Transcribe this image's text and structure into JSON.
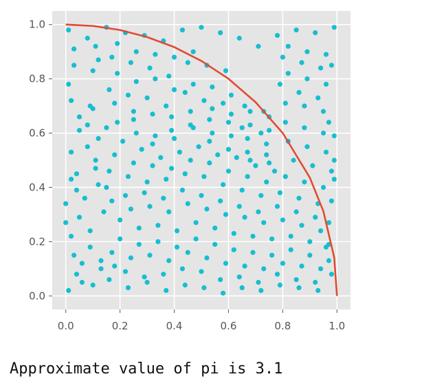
{
  "chart_data": {
    "type": "scatter",
    "title": "",
    "xlabel": "",
    "ylabel": "",
    "xlim": [
      -0.05,
      1.05
    ],
    "ylim": [
      -0.05,
      1.05
    ],
    "xticks": [
      0.0,
      0.2,
      0.4,
      0.6,
      0.8,
      1.0
    ],
    "yticks": [
      0.0,
      0.2,
      0.4,
      0.6,
      0.8,
      1.0
    ],
    "x_tick_labels": [
      "0.0",
      "0.2",
      "0.4",
      "0.6",
      "0.8",
      "1.0"
    ],
    "y_tick_labels": [
      "0.0",
      "0.2",
      "0.4",
      "0.6",
      "0.8",
      "1.0"
    ],
    "grid": true,
    "style": "ggplot",
    "background_color": "#e5e5e5",
    "grid_color": "#ffffff",
    "point_color": "#17becf",
    "curve_color": "#e24a33",
    "series": [
      {
        "kind": "curve",
        "description": "quarter circle y = sqrt(1 - x^2)",
        "x": [
          0.0,
          0.1,
          0.2,
          0.3,
          0.4,
          0.5,
          0.6,
          0.7,
          0.8,
          0.9,
          0.95,
          0.99,
          1.0
        ],
        "y": [
          1.0,
          0.995,
          0.98,
          0.954,
          0.917,
          0.866,
          0.8,
          0.714,
          0.6,
          0.436,
          0.312,
          0.141,
          0.0
        ]
      },
      {
        "kind": "points",
        "x": [
          0.01,
          0.03,
          0.02,
          0.05,
          0.04,
          0.0,
          0.02,
          0.06,
          0.01,
          0.03,
          0.05,
          0.02,
          0.04,
          0.0,
          0.03,
          0.06,
          0.01,
          0.02,
          0.05,
          0.04,
          0.08,
          0.1,
          0.09,
          0.12,
          0.11,
          0.07,
          0.09,
          0.13,
          0.1,
          0.12,
          0.08,
          0.11,
          0.14,
          0.09,
          0.12,
          0.1,
          0.08,
          0.13,
          0.11,
          0.15,
          0.17,
          0.16,
          0.19,
          0.18,
          0.15,
          0.2,
          0.17,
          0.16,
          0.19,
          0.18,
          0.21,
          0.17,
          0.2,
          0.16,
          0.19,
          0.15,
          0.18,
          0.22,
          0.24,
          0.23,
          0.26,
          0.25,
          0.22,
          0.27,
          0.24,
          0.23,
          0.26,
          0.25,
          0.28,
          0.24,
          0.27,
          0.23,
          0.26,
          0.25,
          0.22,
          0.29,
          0.31,
          0.3,
          0.33,
          0.32,
          0.29,
          0.34,
          0.31,
          0.3,
          0.33,
          0.32,
          0.35,
          0.31,
          0.34,
          0.3,
          0.33,
          0.32,
          0.29,
          0.36,
          0.38,
          0.37,
          0.4,
          0.39,
          0.36,
          0.41,
          0.38,
          0.37,
          0.4,
          0.39,
          0.42,
          0.38,
          0.41,
          0.37,
          0.4,
          0.39,
          0.36,
          0.43,
          0.45,
          0.44,
          0.47,
          0.46,
          0.43,
          0.48,
          0.45,
          0.44,
          0.47,
          0.46,
          0.49,
          0.45,
          0.48,
          0.44,
          0.47,
          0.46,
          0.43,
          0.5,
          0.52,
          0.51,
          0.54,
          0.53,
          0.5,
          0.55,
          0.52,
          0.51,
          0.54,
          0.53,
          0.56,
          0.52,
          0.55,
          0.51,
          0.54,
          0.53,
          0.5,
          0.57,
          0.59,
          0.58,
          0.61,
          0.6,
          0.57,
          0.62,
          0.59,
          0.58,
          0.61,
          0.6,
          0.63,
          0.59,
          0.62,
          0.58,
          0.61,
          0.6,
          0.57,
          0.64,
          0.66,
          0.65,
          0.68,
          0.67,
          0.64,
          0.69,
          0.66,
          0.65,
          0.68,
          0.67,
          0.7,
          0.66,
          0.69,
          0.65,
          0.68,
          0.67,
          0.64,
          0.71,
          0.73,
          0.72,
          0.75,
          0.74,
          0.71,
          0.76,
          0.73,
          0.72,
          0.75,
          0.74,
          0.77,
          0.73,
          0.76,
          0.72,
          0.75,
          0.74,
          0.71,
          0.78,
          0.8,
          0.79,
          0.82,
          0.81,
          0.78,
          0.83,
          0.8,
          0.79,
          0.82,
          0.81,
          0.84,
          0.8,
          0.83,
          0.79,
          0.82,
          0.81,
          0.78,
          0.85,
          0.87,
          0.86,
          0.89,
          0.88,
          0.85,
          0.9,
          0.87,
          0.86,
          0.89,
          0.88,
          0.91,
          0.87,
          0.9,
          0.86,
          0.89,
          0.88,
          0.85,
          0.92,
          0.94,
          0.93,
          0.96,
          0.95,
          0.92,
          0.97,
          0.94,
          0.93,
          0.96,
          0.95,
          0.98,
          0.94,
          0.97,
          0.93,
          0.96,
          0.95,
          0.92,
          0.99,
          0.98,
          0.97,
          0.99,
          0.98,
          0.96,
          0.99,
          0.97,
          0.98,
          0.99
        ],
        "y": [
          0.98,
          0.85,
          0.72,
          0.61,
          0.45,
          0.34,
          0.22,
          0.12,
          0.02,
          0.91,
          0.66,
          0.53,
          0.39,
          0.27,
          0.15,
          0.05,
          0.78,
          0.43,
          0.29,
          0.08,
          0.95,
          0.83,
          0.7,
          0.58,
          0.47,
          0.36,
          0.24,
          0.13,
          0.04,
          0.87,
          0.63,
          0.5,
          0.31,
          0.18,
          0.41,
          0.69,
          0.55,
          0.1,
          0.92,
          0.99,
          0.88,
          0.76,
          0.64,
          0.52,
          0.4,
          0.28,
          0.16,
          0.06,
          0.93,
          0.71,
          0.57,
          0.35,
          0.21,
          0.46,
          0.82,
          0.62,
          0.11,
          0.97,
          0.86,
          0.74,
          0.6,
          0.49,
          0.37,
          0.25,
          0.14,
          0.03,
          0.9,
          0.68,
          0.54,
          0.32,
          0.19,
          0.44,
          0.79,
          0.65,
          0.09,
          0.96,
          0.84,
          0.73,
          0.59,
          0.48,
          0.38,
          0.26,
          0.15,
          0.05,
          0.89,
          0.67,
          0.51,
          0.33,
          0.2,
          0.42,
          0.8,
          0.56,
          0.07,
          0.94,
          0.81,
          0.7,
          0.58,
          0.47,
          0.36,
          0.24,
          0.13,
          0.02,
          0.88,
          0.66,
          0.53,
          0.31,
          0.18,
          0.43,
          0.76,
          0.61,
          0.08,
          0.98,
          0.86,
          0.75,
          0.62,
          0.5,
          0.39,
          0.27,
          0.16,
          0.04,
          0.9,
          0.68,
          0.55,
          0.34,
          0.21,
          0.45,
          0.78,
          0.63,
          0.1,
          0.99,
          0.85,
          0.72,
          0.6,
          0.49,
          0.37,
          0.25,
          0.14,
          0.03,
          0.77,
          0.65,
          0.52,
          0.32,
          0.19,
          0.44,
          0.69,
          0.57,
          0.09,
          0.97,
          0.83,
          0.71,
          0.59,
          0.46,
          0.35,
          0.23,
          0.12,
          0.01,
          0.74,
          0.64,
          0.51,
          0.3,
          0.17,
          0.41,
          0.67,
          0.54,
          0.06,
          0.95,
          0.7,
          0.62,
          0.5,
          0.44,
          0.33,
          0.22,
          0.11,
          0.03,
          0.68,
          0.58,
          0.48,
          0.29,
          0.16,
          0.39,
          0.63,
          0.53,
          0.07,
          0.92,
          0.68,
          0.6,
          0.49,
          0.42,
          0.31,
          0.21,
          0.1,
          0.02,
          0.66,
          0.56,
          0.46,
          0.27,
          0.15,
          0.37,
          0.61,
          0.52,
          0.05,
          0.96,
          0.88,
          0.78,
          0.57,
          0.44,
          0.33,
          0.22,
          0.12,
          0.04,
          0.92,
          0.71,
          0.5,
          0.28,
          0.17,
          0.38,
          0.82,
          0.64,
          0.08,
          0.98,
          0.86,
          0.75,
          0.55,
          0.42,
          0.31,
          0.2,
          0.11,
          0.03,
          0.9,
          0.7,
          0.48,
          0.26,
          0.15,
          0.36,
          0.8,
          0.62,
          0.06,
          0.97,
          0.84,
          0.73,
          0.53,
          0.4,
          0.29,
          0.19,
          0.1,
          0.02,
          0.89,
          0.68,
          0.46,
          0.24,
          0.13,
          0.34,
          0.78,
          0.6,
          0.05,
          0.99,
          0.85,
          0.64,
          0.43,
          0.35,
          0.18,
          0.5,
          0.27,
          0.08,
          0.59
        ]
      }
    ]
  },
  "output_text": "Approximate value of pi is 3.1"
}
